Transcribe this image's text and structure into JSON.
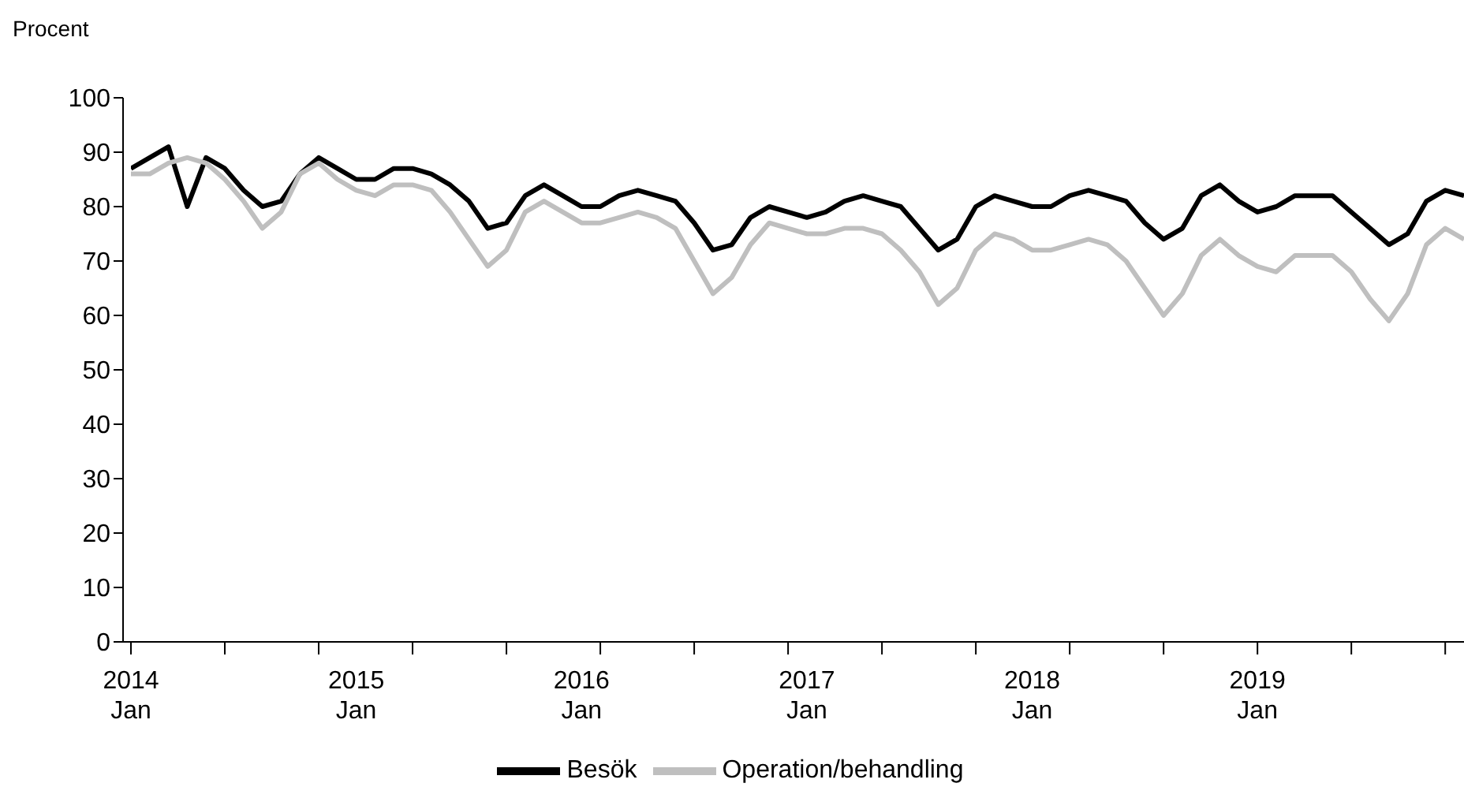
{
  "chart_data": {
    "type": "line",
    "ylabel": "Procent",
    "categories": [
      "2014 Jan",
      null,
      null,
      null,
      null,
      null,
      null,
      null,
      null,
      null,
      null,
      null,
      "2015 Jan",
      null,
      null,
      null,
      null,
      null,
      null,
      null,
      null,
      null,
      null,
      null,
      "2016 Jan",
      null,
      null,
      null,
      null,
      null,
      null,
      null,
      null,
      null,
      null,
      null,
      "2017 Jan",
      null,
      null,
      null,
      null,
      null,
      null,
      null,
      null,
      null,
      null,
      null,
      "2018 Jan",
      null,
      null,
      null,
      null,
      null,
      null,
      null,
      null,
      null,
      null,
      null,
      "2019 Jan",
      null,
      null,
      null,
      null,
      null,
      null,
      null,
      null,
      null,
      null,
      null
    ],
    "series": [
      {
        "name": "Besök",
        "color": "#000000",
        "values": [
          87,
          89,
          91,
          80,
          89,
          87,
          83,
          80,
          81,
          86,
          89,
          87,
          85,
          85,
          87,
          87,
          86,
          84,
          81,
          76,
          77,
          82,
          84,
          82,
          80,
          80,
          82,
          83,
          82,
          81,
          77,
          72,
          73,
          78,
          80,
          79,
          78,
          79,
          81,
          82,
          81,
          80,
          76,
          72,
          74,
          80,
          82,
          81,
          80,
          80,
          82,
          83,
          82,
          81,
          77,
          74,
          76,
          82,
          84,
          81,
          79,
          80,
          82,
          82,
          82,
          79,
          76,
          73,
          75,
          81,
          83,
          82
        ]
      },
      {
        "name": "Operation/behandling",
        "color": "#bfbfbf",
        "values": [
          86,
          86,
          88,
          89,
          88,
          85,
          81,
          76,
          79,
          86,
          88,
          85,
          83,
          82,
          84,
          84,
          83,
          79,
          74,
          69,
          72,
          79,
          81,
          79,
          77,
          77,
          78,
          79,
          78,
          76,
          70,
          64,
          67,
          73,
          77,
          76,
          75,
          75,
          76,
          76,
          75,
          72,
          68,
          62,
          65,
          72,
          75,
          74,
          72,
          72,
          73,
          74,
          73,
          70,
          65,
          60,
          64,
          71,
          74,
          71,
          69,
          68,
          71,
          71,
          71,
          68,
          63,
          59,
          64,
          73,
          76,
          74
        ]
      }
    ],
    "ylim": [
      0,
      100
    ],
    "yticks": [
      0,
      10,
      20,
      30,
      40,
      50,
      60,
      70,
      80,
      90,
      100
    ],
    "grid": false,
    "legend": "bottom",
    "marker": "none",
    "line_style": "solid"
  }
}
